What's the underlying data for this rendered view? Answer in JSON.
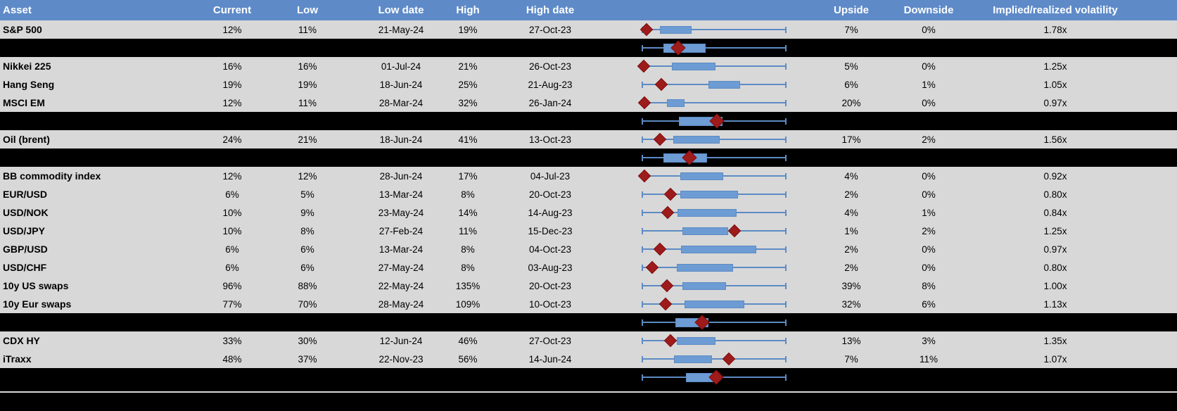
{
  "header": {
    "asset": "Asset",
    "current": "Current",
    "low": "Low",
    "low_date": "Low date",
    "high": "High",
    "high_date": "High date",
    "upside": "Upside",
    "downside": "Downside",
    "vol": "Implied/realized volatility"
  },
  "rows": [
    {
      "type": "data",
      "asset": "S&P 500",
      "current": "12%",
      "low": "11%",
      "low_date": "21-May-24",
      "high": "19%",
      "high_date": "27-Oct-23",
      "upside": "7%",
      "downside": "0%",
      "vol": "1.78x"
    },
    {
      "type": "separator"
    },
    {
      "type": "data",
      "asset": "Nikkei 225",
      "current": "16%",
      "low": "16%",
      "low_date": "01-Jul-24",
      "high": "21%",
      "high_date": "26-Oct-23",
      "upside": "5%",
      "downside": "0%",
      "vol": "1.25x"
    },
    {
      "type": "data",
      "asset": "Hang Seng",
      "current": "19%",
      "low": "19%",
      "low_date": "18-Jun-24",
      "high": "25%",
      "high_date": "21-Aug-23",
      "upside": "6%",
      "downside": "1%",
      "vol": "1.05x"
    },
    {
      "type": "data",
      "asset": "MSCI EM",
      "current": "12%",
      "low": "11%",
      "low_date": "28-Mar-24",
      "high": "32%",
      "high_date": "26-Jan-24",
      "upside": "20%",
      "downside": "0%",
      "vol": "0.97x"
    },
    {
      "type": "separator"
    },
    {
      "type": "data",
      "asset": "Oil (brent)",
      "current": "24%",
      "low": "21%",
      "low_date": "18-Jun-24",
      "high": "41%",
      "high_date": "13-Oct-23",
      "upside": "17%",
      "downside": "2%",
      "vol": "1.56x"
    },
    {
      "type": "separator"
    },
    {
      "type": "data",
      "asset": "BB commodity index",
      "current": "12%",
      "low": "12%",
      "low_date": "28-Jun-24",
      "high": "17%",
      "high_date": "04-Jul-23",
      "upside": "4%",
      "downside": "0%",
      "vol": "0.92x"
    },
    {
      "type": "data",
      "asset": "EUR/USD",
      "current": "6%",
      "low": "5%",
      "low_date": "13-Mar-24",
      "high": "8%",
      "high_date": "20-Oct-23",
      "upside": "2%",
      "downside": "0%",
      "vol": "0.80x"
    },
    {
      "type": "data",
      "asset": "USD/NOK",
      "current": "10%",
      "low": "9%",
      "low_date": "23-May-24",
      "high": "14%",
      "high_date": "14-Aug-23",
      "upside": "4%",
      "downside": "1%",
      "vol": "0.84x"
    },
    {
      "type": "data",
      "asset": "USD/JPY",
      "current": "10%",
      "low": "8%",
      "low_date": "27-Feb-24",
      "high": "11%",
      "high_date": "15-Dec-23",
      "upside": "1%",
      "downside": "2%",
      "vol": "1.25x"
    },
    {
      "type": "data",
      "asset": "GBP/USD",
      "current": "6%",
      "low": "6%",
      "low_date": "13-Mar-24",
      "high": "8%",
      "high_date": "04-Oct-23",
      "upside": "2%",
      "downside": "0%",
      "vol": "0.97x"
    },
    {
      "type": "data",
      "asset": "USD/CHF",
      "current": "6%",
      "low": "6%",
      "low_date": "27-May-24",
      "high": "8%",
      "high_date": "03-Aug-23",
      "upside": "2%",
      "downside": "0%",
      "vol": "0.80x"
    },
    {
      "type": "data",
      "asset": "10y US swaps",
      "current": "96%",
      "low": "88%",
      "low_date": "22-May-24",
      "high": "135%",
      "high_date": "20-Oct-23",
      "upside": "39%",
      "downside": "8%",
      "vol": "1.00x"
    },
    {
      "type": "data",
      "asset": "10y Eur swaps",
      "current": "77%",
      "low": "70%",
      "low_date": "28-May-24",
      "high": "109%",
      "high_date": "10-Oct-23",
      "upside": "32%",
      "downside": "6%",
      "vol": "1.13x"
    },
    {
      "type": "separator"
    },
    {
      "type": "data",
      "asset": "CDX HY",
      "current": "33%",
      "low": "30%",
      "low_date": "12-Jun-24",
      "high": "46%",
      "high_date": "27-Oct-23",
      "upside": "13%",
      "downside": "3%",
      "vol": "1.35x"
    },
    {
      "type": "data",
      "asset": "iTraxx",
      "current": "48%",
      "low": "37%",
      "low_date": "22-Nov-23",
      "high": "56%",
      "high_date": "14-Jun-24",
      "upside": "7%",
      "downside": "11%",
      "vol": "1.07x"
    },
    {
      "type": "separator"
    }
  ],
  "chart_data": {
    "type": "boxplot",
    "orientation": "horizontal",
    "note": "One mini range-plot per row: whisker spans period low (0) to period high (1); box and diamond (current level) positions are normalized 0-1 along the whisker.",
    "series": [
      {
        "label": "S&P 500",
        "current_pct": 12,
        "low_pct": 11,
        "high_pct": 19,
        "upside_pct": 7,
        "downside_pct": 0,
        "implied_realized_vol": 1.78,
        "whisker": [
          0,
          1
        ],
        "box": [
          0.123,
          0.343
        ],
        "diamond": 0.03
      },
      {
        "label": "",
        "whisker": [
          0,
          1
        ],
        "box": [
          0.147,
          0.441
        ],
        "diamond": 0.25
      },
      {
        "label": "Nikkei 225",
        "current_pct": 16,
        "low_pct": 16,
        "high_pct": 21,
        "upside_pct": 5,
        "downside_pct": 0,
        "implied_realized_vol": 1.25,
        "whisker": [
          0,
          1
        ],
        "box": [
          0.206,
          0.51
        ],
        "diamond": 0.01
      },
      {
        "label": "Hang Seng",
        "current_pct": 19,
        "low_pct": 19,
        "high_pct": 25,
        "upside_pct": 6,
        "downside_pct": 1,
        "implied_realized_vol": 1.05,
        "whisker": [
          0,
          1
        ],
        "box": [
          0.461,
          0.681
        ],
        "diamond": 0.132
      },
      {
        "label": "MSCI EM",
        "current_pct": 12,
        "low_pct": 11,
        "high_pct": 32,
        "upside_pct": 20,
        "downside_pct": 0,
        "implied_realized_vol": 0.97,
        "whisker": [
          0,
          1
        ],
        "box": [
          0.172,
          0.294
        ],
        "diamond": 0.015
      },
      {
        "label": "",
        "whisker": [
          0,
          1
        ],
        "box": [
          0.255,
          0.559
        ],
        "diamond": 0.52
      },
      {
        "label": "Oil (brent)",
        "current_pct": 24,
        "low_pct": 21,
        "high_pct": 41,
        "upside_pct": 17,
        "downside_pct": 2,
        "implied_realized_vol": 1.56,
        "whisker": [
          0,
          1
        ],
        "box": [
          0.216,
          0.539
        ],
        "diamond": 0.123
      },
      {
        "label": "",
        "whisker": [
          0,
          1
        ],
        "box": [
          0.147,
          0.451
        ],
        "diamond": 0.328
      },
      {
        "label": "BB commodity index",
        "current_pct": 12,
        "low_pct": 12,
        "high_pct": 17,
        "upside_pct": 4,
        "downside_pct": 0,
        "implied_realized_vol": 0.92,
        "whisker": [
          0,
          1
        ],
        "box": [
          0.265,
          0.564
        ],
        "diamond": 0.015
      },
      {
        "label": "EUR/USD",
        "current_pct": 6,
        "low_pct": 5,
        "high_pct": 8,
        "upside_pct": 2,
        "downside_pct": 0,
        "implied_realized_vol": 0.8,
        "whisker": [
          0,
          1
        ],
        "box": [
          0.265,
          0.667
        ],
        "diamond": 0.196
      },
      {
        "label": "USD/NOK",
        "current_pct": 10,
        "low_pct": 9,
        "high_pct": 14,
        "upside_pct": 4,
        "downside_pct": 1,
        "implied_realized_vol": 0.84,
        "whisker": [
          0,
          1
        ],
        "box": [
          0.245,
          0.657
        ],
        "diamond": 0.176
      },
      {
        "label": "USD/JPY",
        "current_pct": 10,
        "low_pct": 8,
        "high_pct": 11,
        "upside_pct": 1,
        "downside_pct": 2,
        "implied_realized_vol": 1.25,
        "whisker": [
          0,
          1
        ],
        "box": [
          0.279,
          0.598
        ],
        "diamond": 0.642
      },
      {
        "label": "GBP/USD",
        "current_pct": 6,
        "low_pct": 6,
        "high_pct": 8,
        "upside_pct": 2,
        "downside_pct": 0,
        "implied_realized_vol": 0.97,
        "whisker": [
          0,
          1
        ],
        "box": [
          0.27,
          0.794
        ],
        "diamond": 0.123
      },
      {
        "label": "USD/CHF",
        "current_pct": 6,
        "low_pct": 6,
        "high_pct": 8,
        "upside_pct": 2,
        "downside_pct": 0,
        "implied_realized_vol": 0.8,
        "whisker": [
          0,
          1
        ],
        "box": [
          0.24,
          0.632
        ],
        "diamond": 0.069
      },
      {
        "label": "10y US swaps",
        "current_pct": 96,
        "low_pct": 88,
        "high_pct": 135,
        "upside_pct": 39,
        "downside_pct": 8,
        "implied_realized_vol": 1.0,
        "whisker": [
          0,
          1
        ],
        "box": [
          0.279,
          0.583
        ],
        "diamond": 0.172
      },
      {
        "label": "10y Eur swaps",
        "current_pct": 77,
        "low_pct": 70,
        "high_pct": 109,
        "upside_pct": 32,
        "downside_pct": 6,
        "implied_realized_vol": 1.13,
        "whisker": [
          0,
          1
        ],
        "box": [
          0.294,
          0.711
        ],
        "diamond": 0.162
      },
      {
        "label": "",
        "whisker": [
          0,
          1
        ],
        "box": [
          0.23,
          0.461
        ],
        "diamond": 0.417
      },
      {
        "label": "CDX HY",
        "current_pct": 33,
        "low_pct": 30,
        "high_pct": 46,
        "upside_pct": 13,
        "downside_pct": 3,
        "implied_realized_vol": 1.35,
        "whisker": [
          0,
          1
        ],
        "box": [
          0.24,
          0.51
        ],
        "diamond": 0.196
      },
      {
        "label": "iTraxx",
        "current_pct": 48,
        "low_pct": 37,
        "high_pct": 56,
        "upside_pct": 7,
        "downside_pct": 11,
        "implied_realized_vol": 1.07,
        "whisker": [
          0,
          1
        ],
        "box": [
          0.221,
          0.485
        ],
        "diamond": 0.603
      },
      {
        "label": "",
        "whisker": [
          0,
          1
        ],
        "box": [
          0.304,
          0.534
        ],
        "diamond": 0.515
      }
    ]
  },
  "colors": {
    "header_bg": "#5E8AC8",
    "header_text": "#FFFFFF",
    "row_bg": "#D8D8D8",
    "separator_bg": "#000000",
    "box_fill": "#6D9BD4",
    "whisker": "#5D8BC4",
    "diamond": "#9E1B1B",
    "text": "#000000"
  }
}
